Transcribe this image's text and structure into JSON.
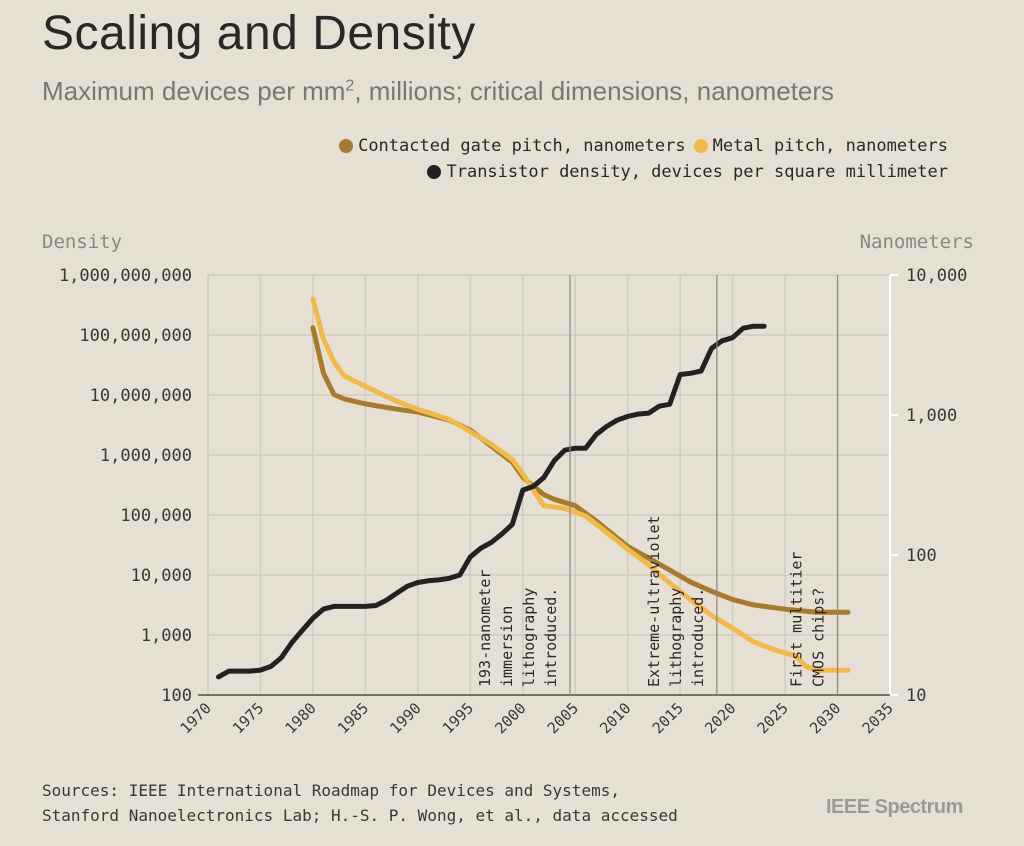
{
  "title": "Scaling and Density",
  "subtitle_main": "Maximum devices per mm",
  "subtitle_sup": "2",
  "subtitle_rest": ", millions; critical dimensions, nanometers",
  "legend": {
    "gate": "Contacted gate pitch, nanometers",
    "metal": "Metal pitch, nanometers",
    "density": "Transistor density, devices per square millimeter"
  },
  "colors": {
    "gate": "#a87a2e",
    "metal": "#f0b94a",
    "density": "#222222",
    "grid": "#d0ccc2",
    "background": "#e6e0d4"
  },
  "sources_line1": "Sources: IEEE International Roadmap for Devices and Systems,",
  "sources_line2": "Stanford Nanoelectronics Lab; H.-S. P. Wong, et al., data accessed",
  "logo": "IEEE Spectrum",
  "chart_data": {
    "type": "line",
    "left_axis_label": "Density",
    "right_axis_label": "Nanometers",
    "xlim": [
      1970,
      2035
    ],
    "y_left_lim": [
      100,
      1000000000
    ],
    "y_right_lim": [
      10,
      10000
    ],
    "y_scale": "log",
    "grid": true,
    "legend_position": "top-right",
    "x_ticks": [
      "1970",
      "1975",
      "1980",
      "1985",
      "1990",
      "1995",
      "2000",
      "2005",
      "2010",
      "2015",
      "2020",
      "2025",
      "2030",
      "2035"
    ],
    "y_left_ticks": [
      "100",
      "1,000",
      "10,000",
      "100,000",
      "1,000,000",
      "10,000,000",
      "100,000,000",
      "1,000,000,000"
    ],
    "y_right_ticks": [
      "10",
      "100",
      "1,000",
      "10,000"
    ],
    "annotations": [
      {
        "x": 2004.5,
        "lines": [
          "193-nanometer",
          "immersion",
          "lithography",
          "introduced."
        ]
      },
      {
        "x": 2018.5,
        "lines": [
          "Extreme-ultraviolet",
          "lithography",
          "introduced."
        ]
      },
      {
        "x": 2030,
        "lines": [
          "First multitier",
          "CMOS chips?"
        ]
      }
    ],
    "series": [
      {
        "name": "Transistor density, devices per square millimeter",
        "axis": "left",
        "points": [
          [
            1971,
            200
          ],
          [
            1972,
            250
          ],
          [
            1974,
            250
          ],
          [
            1975,
            260
          ],
          [
            1976,
            300
          ],
          [
            1977,
            420
          ],
          [
            1978,
            750
          ],
          [
            1979,
            1200
          ],
          [
            1980,
            1900
          ],
          [
            1981,
            2700
          ],
          [
            1982,
            3000
          ],
          [
            1983,
            3000
          ],
          [
            1984,
            3000
          ],
          [
            1985,
            3000
          ],
          [
            1986,
            3100
          ],
          [
            1987,
            3800
          ],
          [
            1988,
            5000
          ],
          [
            1989,
            6500
          ],
          [
            1990,
            7500
          ],
          [
            1991,
            8000
          ],
          [
            1992,
            8300
          ],
          [
            1993,
            8800
          ],
          [
            1994,
            10000
          ],
          [
            1995,
            20000
          ],
          [
            1996,
            28000
          ],
          [
            1997,
            35000
          ],
          [
            1998,
            48000
          ],
          [
            1999,
            70000
          ],
          [
            2000,
            260000
          ],
          [
            2001,
            300000
          ],
          [
            2002,
            420000
          ],
          [
            2003,
            800000
          ],
          [
            2004,
            1200000
          ],
          [
            2005,
            1300000
          ],
          [
            2006,
            1300000
          ],
          [
            2007,
            2200000
          ],
          [
            2008,
            3000000
          ],
          [
            2009,
            3800000
          ],
          [
            2010,
            4400000
          ],
          [
            2011,
            4800000
          ],
          [
            2012,
            5000000
          ],
          [
            2013,
            6500000
          ],
          [
            2014,
            7000000
          ],
          [
            2015,
            22000000
          ],
          [
            2016,
            23000000
          ],
          [
            2017,
            25000000
          ],
          [
            2018,
            60000000
          ],
          [
            2019,
            80000000
          ],
          [
            2020,
            90000000
          ],
          [
            2021,
            130000000
          ],
          [
            2022,
            140000000
          ],
          [
            2023,
            140000000
          ]
        ]
      },
      {
        "name": "Contacted gate pitch, nanometers",
        "axis": "right",
        "points": [
          [
            1980,
            4200
          ],
          [
            1981,
            2000
          ],
          [
            1982,
            1400
          ],
          [
            1983,
            1300
          ],
          [
            1985,
            1200
          ],
          [
            1988,
            1100
          ],
          [
            1990,
            1050
          ],
          [
            1993,
            920
          ],
          [
            1995,
            780
          ],
          [
            1997,
            600
          ],
          [
            1999,
            460
          ],
          [
            2000,
            360
          ],
          [
            2001,
            310
          ],
          [
            2002,
            270
          ],
          [
            2003,
            250
          ],
          [
            2005,
            225
          ],
          [
            2007,
            175
          ],
          [
            2010,
            115
          ],
          [
            2012,
            95
          ],
          [
            2014,
            78
          ],
          [
            2016,
            64
          ],
          [
            2018,
            55
          ],
          [
            2020,
            48
          ],
          [
            2022,
            44
          ],
          [
            2025,
            41
          ],
          [
            2028,
            39
          ],
          [
            2031,
            39
          ]
        ]
      },
      {
        "name": "Metal pitch, nanometers",
        "axis": "right",
        "points": [
          [
            1980,
            6700
          ],
          [
            1981,
            3500
          ],
          [
            1982,
            2400
          ],
          [
            1983,
            1900
          ],
          [
            1985,
            1600
          ],
          [
            1988,
            1250
          ],
          [
            1990,
            1100
          ],
          [
            1993,
            930
          ],
          [
            1995,
            760
          ],
          [
            1997,
            620
          ],
          [
            1999,
            480
          ],
          [
            2000,
            380
          ],
          [
            2001,
            290
          ],
          [
            2002,
            225
          ],
          [
            2004,
            215
          ],
          [
            2006,
            190
          ],
          [
            2008,
            145
          ],
          [
            2010,
            110
          ],
          [
            2012,
            85
          ],
          [
            2014,
            63
          ],
          [
            2016,
            48
          ],
          [
            2018,
            37
          ],
          [
            2020,
            30
          ],
          [
            2022,
            24
          ],
          [
            2024,
            21
          ],
          [
            2026,
            19
          ],
          [
            2027,
            16
          ],
          [
            2028,
            15
          ],
          [
            2031,
            15
          ]
        ]
      }
    ]
  }
}
